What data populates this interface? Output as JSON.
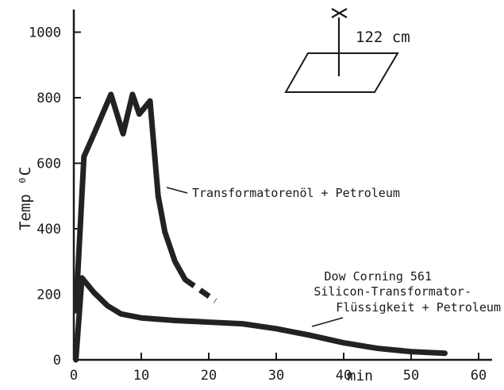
{
  "chart_data": {
    "type": "line",
    "ylabel": "Temp ⁰C",
    "xlabel": "min",
    "xlim": [
      0,
      62
    ],
    "ylim": [
      0,
      1000
    ],
    "x_ticks": [
      0,
      10,
      20,
      30,
      40,
      50,
      60
    ],
    "y_ticks": [
      0,
      200,
      400,
      600,
      800,
      1000
    ],
    "grid": false,
    "series": [
      {
        "label": "Transformatorenöl + Petroleum",
        "color": "#222222",
        "points": [
          [
            0.3,
            150
          ],
          [
            1.5,
            620
          ],
          [
            3,
            690
          ],
          [
            5.5,
            810
          ],
          [
            7.3,
            690
          ],
          [
            8.7,
            810
          ],
          [
            9.7,
            750
          ],
          [
            11.3,
            790
          ],
          [
            12.5,
            500
          ],
          [
            13.5,
            390
          ],
          [
            15,
            300
          ],
          [
            16.5,
            245
          ]
        ],
        "dashed_tail": [
          [
            16.5,
            245
          ],
          [
            21,
            180
          ]
        ]
      },
      {
        "label": "Dow Corning 561 Silicon-Transformator-Flüssigkeit + Petroleum",
        "color": "#222222",
        "points": [
          [
            0.3,
            0
          ],
          [
            1.2,
            250
          ],
          [
            3,
            205
          ],
          [
            5,
            165
          ],
          [
            7,
            140
          ],
          [
            10,
            128
          ],
          [
            15,
            120
          ],
          [
            20,
            115
          ],
          [
            25,
            110
          ],
          [
            30,
            95
          ],
          [
            35,
            75
          ],
          [
            40,
            52
          ],
          [
            45,
            35
          ],
          [
            50,
            25
          ],
          [
            55,
            20
          ]
        ]
      }
    ],
    "annotations": {
      "series1": "Transformatorenöl + Petroleum",
      "series2_lines": [
        "Dow Corning 561",
        "Silicon-Transformator-",
        "Flüssigkeit + Petroleum"
      ],
      "inset": "122 cm"
    }
  }
}
